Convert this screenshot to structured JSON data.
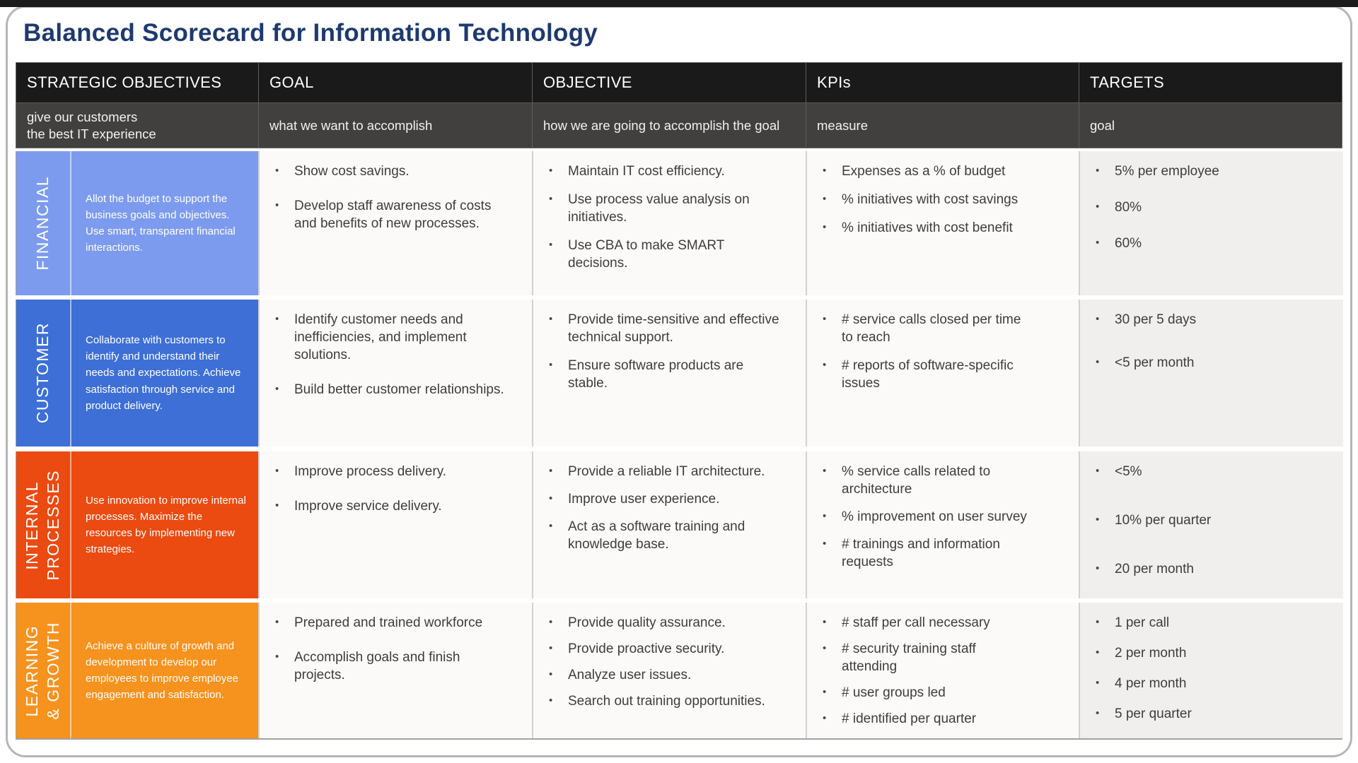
{
  "page": {
    "title": "Balanced Scorecard for Information Technology"
  },
  "icons": {
    "bullet": "•"
  },
  "colors": {
    "title": "#1e3a6e",
    "header_bg": "#1a1a1a",
    "subheader_bg": "#423f3f",
    "financial": "#7D9BEE",
    "customer": "#3D6FD6",
    "internal_processes": "#EB4A10",
    "learning_growth": "#F6921E"
  },
  "table": {
    "headers": [
      {
        "label": "STRATEGIC OBJECTIVES",
        "subtitle": "give our customers\nthe best IT experience"
      },
      {
        "label": "GOAL",
        "subtitle": "what we want to accomplish"
      },
      {
        "label": "OBJECTIVE",
        "subtitle": "how we are going to accomplish the goal"
      },
      {
        "label": "KPIs",
        "subtitle": "measure"
      },
      {
        "label": "TARGETS",
        "subtitle": "goal"
      }
    ],
    "rows": [
      {
        "category": "FINANCIAL",
        "color": "#7D9BEE",
        "description": "Allot the budget to support the business goals and objectives. Use smart, transparent financial interactions.",
        "goal": [
          "Show cost savings.",
          "Develop staff awareness of costs and benefits of new processes."
        ],
        "objective": [
          "Maintain IT cost efficiency.",
          "Use process value analysis on initiatives.",
          "Use CBA to make SMART decisions."
        ],
        "kpis": [
          "Expenses as a % of budget",
          "% initiatives with cost savings",
          "% initiatives with cost benefit"
        ],
        "targets": [
          "5% per employee",
          "80%",
          "60%"
        ]
      },
      {
        "category": "CUSTOMER",
        "color": "#3D6FD6",
        "description": "Collaborate with customers to identify and understand their needs and expectations. Achieve satisfaction through service and product delivery.",
        "goal": [
          "Identify customer needs and inefficiencies, and implement solutions.",
          "Build better customer relationships."
        ],
        "objective": [
          "Provide time-sensitive and effective technical support.",
          "Ensure software products are stable."
        ],
        "kpis": [
          "# service calls closed per time to reach",
          "# reports of software-specific issues"
        ],
        "targets": [
          "30 per 5 days",
          "<5 per month"
        ]
      },
      {
        "category": "INTERNAL\nPROCESSES",
        "color": "#EB4A10",
        "description": "Use innovation to improve internal processes. Maximize the resources by implementing new strategies.",
        "goal": [
          "Improve process delivery.",
          "Improve service delivery."
        ],
        "objective": [
          "Provide a reliable IT architecture.",
          "Improve user experience.",
          "Act as a software training and knowledge base."
        ],
        "kpis": [
          "% service calls related to architecture",
          "% improvement on user survey",
          "# trainings and information requests"
        ],
        "targets": [
          "<5%",
          "10% per quarter",
          "20 per month"
        ]
      },
      {
        "category": "LEARNING\n& GROWTH",
        "color": "#F6921E",
        "description": "Achieve a culture of growth and development to develop our employees to improve employee engagement and satisfaction.",
        "goal": [
          "Prepared and trained workforce",
          "Accomplish goals and finish projects."
        ],
        "objective": [
          "Provide quality assurance.",
          "Provide proactive security.",
          "Analyze user issues.",
          "Search out training opportunities."
        ],
        "kpis": [
          "# staff per call necessary",
          "# security training staff attending",
          "# user groups led",
          "# identified per quarter"
        ],
        "targets": [
          "1 per call",
          "2 per month",
          "4 per month",
          "5 per quarter"
        ]
      }
    ]
  }
}
